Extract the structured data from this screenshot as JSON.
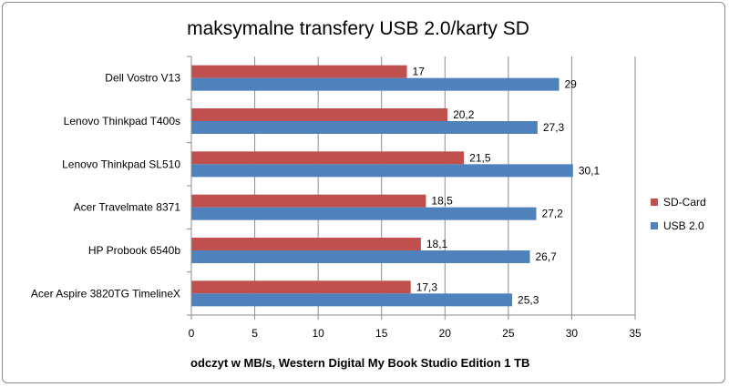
{
  "chart_data": {
    "type": "bar",
    "orientation": "horizontal",
    "title": "maksymalne transfery USB 2.0/karty SD",
    "xlabel": "odczyt w MB/s, Western Digital My Book Studio Edition 1 TB",
    "ylabel": "",
    "categories": [
      "Dell Vostro  V13",
      "Lenovo Thinkpad T400s",
      "Lenovo Thinkpad SL510",
      "Acer Travelmate 8371",
      "HP Probook 6540b",
      "Acer Aspire 3820TG TimelineX"
    ],
    "series": [
      {
        "name": "SD-Card",
        "color": "#c0504d",
        "values": [
          17,
          20.2,
          21.5,
          18.5,
          18.1,
          17.3
        ],
        "labels": [
          "17",
          "20,2",
          "21,5",
          "18,5",
          "18,1",
          "17,3"
        ]
      },
      {
        "name": "USB 2.0",
        "color": "#4f81bd",
        "values": [
          29,
          27.3,
          30.1,
          27.2,
          26.7,
          25.3
        ],
        "labels": [
          "29",
          "27,3",
          "30,1",
          "27,2",
          "26,7",
          "25,3"
        ]
      }
    ],
    "xlim": [
      0,
      35
    ],
    "xticks": [
      "0",
      "5",
      "10",
      "15",
      "20",
      "25",
      "30",
      "35"
    ],
    "grid": true,
    "legend": "right"
  }
}
